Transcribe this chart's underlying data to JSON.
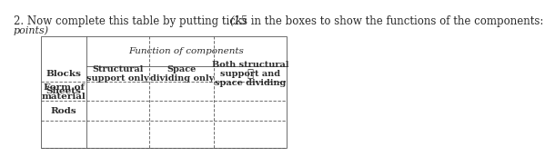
{
  "title": "2. Now complete this table by putting ticks in the boxes to show the functions of the components: ",
  "title_italic_suffix": "(15",
  "subtitle": "points)",
  "col_header_main": "Function of components",
  "col_headers": [
    "Form of\nmaterial",
    "Structural\nsupport only",
    "Space\ndividing only",
    "Both structural\nsupport and\nspace dividing"
  ],
  "rows": [
    "Blocks",
    "Sheets",
    "Rods"
  ],
  "tick_positions": [
    [
      0,
      2
    ]
  ],
  "background_color": "#ffffff",
  "text_color": "#2c2c2c",
  "table_line_color": "#555555",
  "font_size_title": 8.5,
  "font_size_table": 7.5
}
